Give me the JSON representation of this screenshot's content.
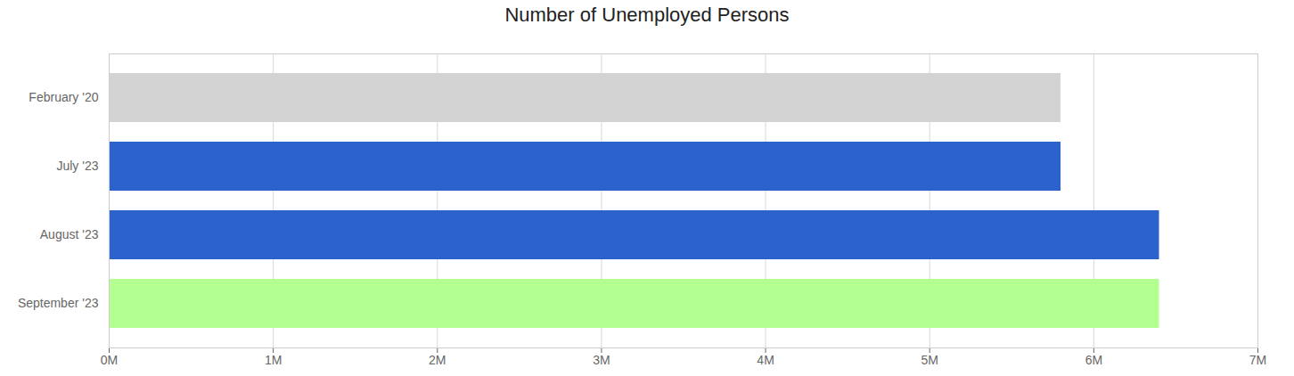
{
  "chart_data": {
    "type": "bar",
    "title": "Number of Unemployed Persons",
    "orientation": "horizontal",
    "categories": [
      "February '20",
      "July '23",
      "August '23",
      "September '23"
    ],
    "values": [
      5800000,
      5800000,
      6400000,
      6400000
    ],
    "colors": [
      "#d3d3d3",
      "#2b62cc",
      "#2b62cc",
      "#b3ff8f"
    ],
    "xlim": [
      0,
      7000000
    ],
    "xticks": [
      {
        "value": 0,
        "label": "0M"
      },
      {
        "value": 1000000,
        "label": "1M"
      },
      {
        "value": 2000000,
        "label": "2M"
      },
      {
        "value": 3000000,
        "label": "3M"
      },
      {
        "value": 4000000,
        "label": "4M"
      },
      {
        "value": 5000000,
        "label": "5M"
      },
      {
        "value": 6000000,
        "label": "6M"
      },
      {
        "value": 7000000,
        "label": "7M"
      }
    ],
    "grid": true
  }
}
